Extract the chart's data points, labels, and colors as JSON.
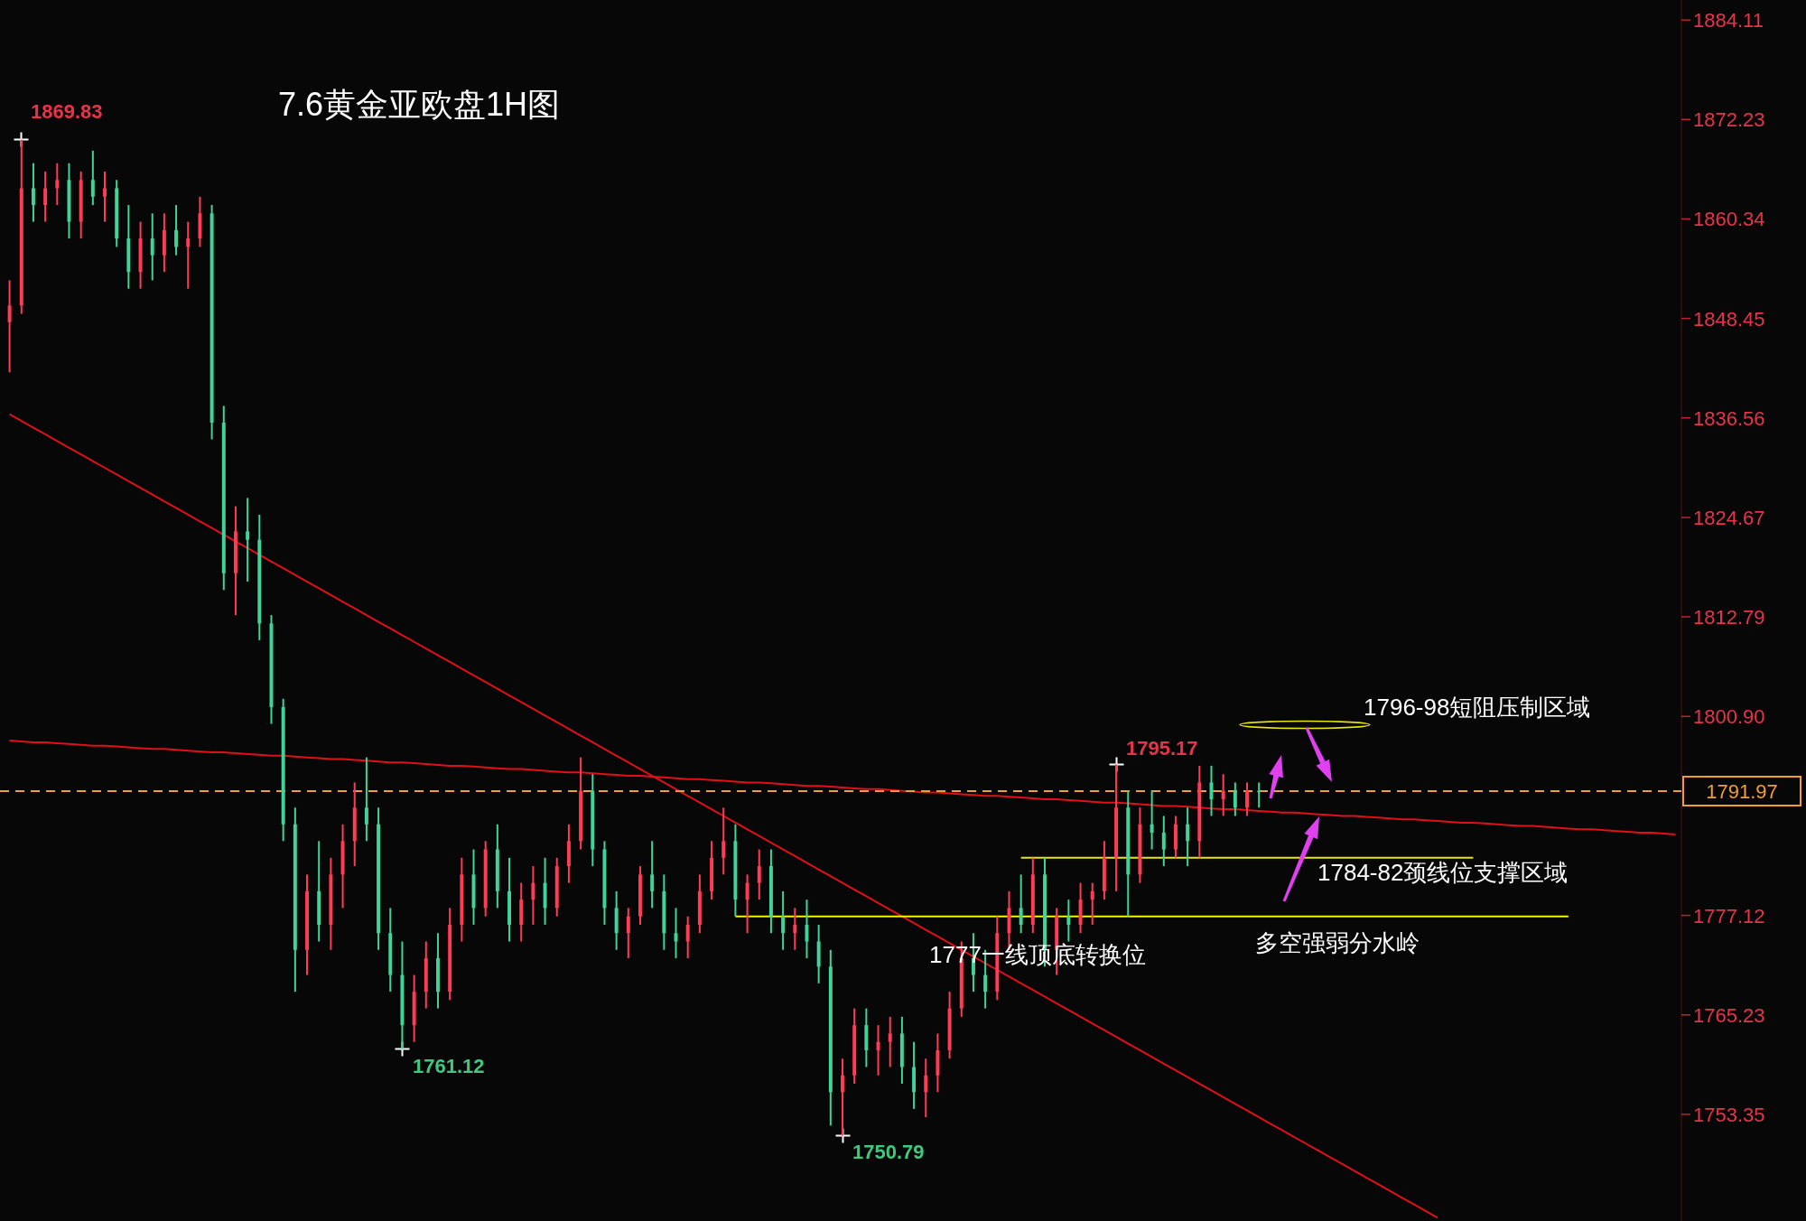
{
  "chart_data": {
    "type": "candlestick",
    "title": "7.6黄金亚欧盘1H图",
    "categories": [
      null,
      null,
      null,
      null,
      null,
      null,
      null,
      null,
      null,
      null,
      null,
      null,
      null,
      null,
      null,
      null,
      null,
      null,
      null,
      null,
      null,
      null,
      null,
      null,
      null,
      null,
      null,
      null,
      null,
      null,
      null,
      null,
      null,
      null,
      null,
      null,
      null,
      null,
      null,
      null,
      null,
      null,
      null,
      null,
      null,
      null,
      null,
      null,
      null,
      null,
      null,
      null,
      null,
      null,
      null,
      null,
      null,
      null,
      null,
      null,
      null,
      null,
      null,
      null,
      null,
      null,
      null,
      null,
      null,
      null,
      null,
      null,
      null,
      null,
      null,
      null,
      null,
      null,
      null,
      null,
      null,
      null,
      null,
      null,
      null,
      null,
      null,
      null,
      null,
      null,
      null,
      null,
      null,
      null,
      null,
      null,
      null,
      null,
      null,
      null,
      null,
      null,
      null,
      null,
      null,
      null,
      null,
      null,
      null,
      null,
      null,
      null,
      null,
      null,
      null,
      null,
      null,
      null,
      null,
      null,
      null,
      null,
      null,
      null,
      null,
      null,
      null,
      null,
      null,
      null,
      null,
      null,
      null,
      null,
      null,
      null,
      null,
      null,
      null,
      null,
      null
    ],
    "ohlc": [
      [
        1848,
        1853,
        1842,
        1850
      ],
      [
        1850,
        1869.83,
        1849,
        1864
      ],
      [
        1864,
        1867,
        1860,
        1862
      ],
      [
        1862,
        1866,
        1860,
        1864
      ],
      [
        1864,
        1867,
        1862,
        1865
      ],
      [
        1865,
        1867,
        1858,
        1860
      ],
      [
        1860,
        1866,
        1858,
        1865
      ],
      [
        1865,
        1868.5,
        1862,
        1863
      ],
      [
        1863,
        1866,
        1860,
        1864
      ],
      [
        1864,
        1865,
        1857,
        1858
      ],
      [
        1858,
        1862,
        1852,
        1854
      ],
      [
        1854,
        1860,
        1852,
        1858
      ],
      [
        1858,
        1861,
        1853,
        1856
      ],
      [
        1856,
        1861,
        1854,
        1859
      ],
      [
        1859,
        1862,
        1856,
        1857
      ],
      [
        1857,
        1860,
        1852,
        1858
      ],
      [
        1858,
        1863,
        1857,
        1861
      ],
      [
        1861,
        1862,
        1834,
        1836
      ],
      [
        1836,
        1838,
        1816,
        1818
      ],
      [
        1818,
        1826,
        1813,
        1823
      ],
      [
        1823,
        1827,
        1817,
        1822
      ],
      [
        1822,
        1825,
        1810,
        1812
      ],
      [
        1812,
        1813,
        1800,
        1802
      ],
      [
        1802,
        1803,
        1786,
        1788
      ],
      [
        1788,
        1790,
        1768,
        1773
      ],
      [
        1773,
        1782,
        1770,
        1780
      ],
      [
        1780,
        1786,
        1774,
        1776
      ],
      [
        1776,
        1784,
        1773,
        1782
      ],
      [
        1782,
        1788,
        1778,
        1786
      ],
      [
        1786,
        1793,
        1783,
        1790
      ],
      [
        1790,
        1796,
        1786,
        1788
      ],
      [
        1788,
        1790,
        1773,
        1775
      ],
      [
        1775,
        1778,
        1768,
        1770
      ],
      [
        1770,
        1774,
        1761.12,
        1764
      ],
      [
        1764,
        1770,
        1762,
        1768
      ],
      [
        1768,
        1774,
        1766,
        1772
      ],
      [
        1772,
        1775,
        1766,
        1768
      ],
      [
        1768,
        1778,
        1767,
        1776
      ],
      [
        1776,
        1784,
        1774,
        1782
      ],
      [
        1782,
        1785,
        1776,
        1778
      ],
      [
        1778,
        1786,
        1777,
        1785
      ],
      [
        1785,
        1788,
        1778,
        1780
      ],
      [
        1780,
        1784,
        1774,
        1776
      ],
      [
        1776,
        1781,
        1774,
        1779
      ],
      [
        1779,
        1783,
        1776,
        1781
      ],
      [
        1781,
        1784,
        1776,
        1778
      ],
      [
        1778,
        1784,
        1777,
        1783
      ],
      [
        1783,
        1788,
        1781,
        1786
      ],
      [
        1786,
        1796,
        1785,
        1792
      ],
      [
        1792,
        1794,
        1783,
        1785
      ],
      [
        1785,
        1786,
        1776,
        1778
      ],
      [
        1778,
        1780,
        1773,
        1775
      ],
      [
        1775,
        1778,
        1772,
        1777
      ],
      [
        1777,
        1783,
        1776,
        1782
      ],
      [
        1782,
        1786,
        1778,
        1780
      ],
      [
        1780,
        1782,
        1773,
        1775
      ],
      [
        1775,
        1778,
        1772,
        1774
      ],
      [
        1774,
        1777,
        1772,
        1776
      ],
      [
        1776,
        1782,
        1775,
        1780
      ],
      [
        1780,
        1786,
        1779,
        1784
      ],
      [
        1784,
        1790,
        1782,
        1786
      ],
      [
        1786,
        1788,
        1777,
        1779
      ],
      [
        1779,
        1782,
        1775,
        1781
      ],
      [
        1781,
        1785,
        1779,
        1783
      ],
      [
        1783,
        1785,
        1775,
        1777
      ],
      [
        1777,
        1780,
        1773,
        1775
      ],
      [
        1775,
        1778,
        1773,
        1776
      ],
      [
        1776,
        1779,
        1772,
        1774
      ],
      [
        1774,
        1776,
        1769,
        1771
      ],
      [
        1771,
        1773,
        1752,
        1756
      ],
      [
        1756,
        1760,
        1750.79,
        1758
      ],
      [
        1758,
        1766,
        1757,
        1764
      ],
      [
        1764,
        1766,
        1759,
        1761
      ],
      [
        1761,
        1764,
        1758,
        1762
      ],
      [
        1762,
        1765,
        1759,
        1763
      ],
      [
        1763,
        1765,
        1757,
        1759
      ],
      [
        1759,
        1762,
        1754,
        1756
      ],
      [
        1756,
        1760,
        1753,
        1758
      ],
      [
        1758,
        1763,
        1756,
        1761
      ],
      [
        1761,
        1768,
        1760,
        1766
      ],
      [
        1766,
        1774,
        1765,
        1772
      ],
      [
        1772,
        1775,
        1768,
        1770
      ],
      [
        1770,
        1773,
        1766,
        1768
      ],
      [
        1768,
        1777,
        1767,
        1775
      ],
      [
        1775,
        1780,
        1773,
        1778
      ],
      [
        1778,
        1782,
        1775,
        1776
      ],
      [
        1776,
        1784,
        1775,
        1782
      ],
      [
        1782,
        1784,
        1771,
        1773
      ],
      [
        1773,
        1778,
        1770,
        1777
      ],
      [
        1777,
        1779,
        1774,
        1776
      ],
      [
        1776,
        1781,
        1775,
        1779
      ],
      [
        1779,
        1781,
        1776,
        1780
      ],
      [
        1780,
        1786,
        1779,
        1784
      ],
      [
        1784,
        1795.17,
        1780,
        1790
      ],
      [
        1790,
        1792,
        1777,
        1782
      ],
      [
        1782,
        1790,
        1781,
        1788
      ],
      [
        1788,
        1792,
        1785,
        1787
      ],
      [
        1787,
        1789,
        1783,
        1785
      ],
      [
        1785,
        1789,
        1784,
        1788
      ],
      [
        1788,
        1790,
        1783,
        1786
      ],
      [
        1786,
        1795,
        1784,
        1793
      ],
      [
        1793,
        1795,
        1789,
        1791
      ],
      [
        1791,
        1794,
        1789,
        1792
      ],
      [
        1792,
        1793,
        1789,
        1790
      ],
      [
        1790,
        1793,
        1789,
        1792
      ],
      [
        1792,
        1793,
        1790,
        1791.97
      ],
      null,
      null,
      null,
      null,
      null,
      null,
      null,
      null,
      null,
      null,
      null,
      null,
      null,
      null,
      null,
      null,
      null,
      null,
      null,
      null,
      null,
      null,
      null,
      null,
      null,
      null,
      null,
      null,
      null,
      null,
      null,
      null,
      null,
      null,
      null
    ],
    "ylim": [
      1740.6,
      1886.5
    ],
    "yticks": [
      1884.11,
      1872.23,
      1860.34,
      1848.45,
      1836.56,
      1824.67,
      1812.79,
      {
        "value": 1800.9,
        "label": "1800.90"
      },
      1777.12,
      1765.23,
      1753.35
    ],
    "tick_labels": "y",
    "series": [
      {
        "type": "line",
        "color": "#e01018",
        "values": [
          1837,
          1836.2,
          1835.4,
          1834.6,
          1833.8,
          1833,
          1832.2,
          1831.4,
          1830.6,
          1829.8,
          1829,
          1828.2,
          1827.4,
          1826.6,
          1825.8,
          1825,
          1824.2,
          1823.4,
          1822.6,
          1821.8,
          1821,
          1820.2,
          1819.4,
          1818.6,
          1817.8,
          1817,
          1816.2,
          1815.4,
          1814.6,
          1813.8,
          1813,
          1812.2,
          1811.4,
          1810.6,
          1809.8,
          1809,
          1808.2,
          1807.4,
          1806.6,
          1805.8,
          1805,
          1804.2,
          1803.4,
          1802.6,
          1801.8,
          1801,
          1800.2,
          1799.4,
          1798.6,
          1797.8,
          1797,
          1796.2,
          1795.4,
          1794.6,
          1793.8,
          1793,
          1792.2,
          1791.4,
          1790.6,
          1789.8,
          1789,
          1788.2,
          1787.4,
          1786.6,
          1785.8,
          1785,
          1784.2,
          1783.4,
          1782.6,
          1781.8,
          1781,
          1780.2,
          1779.4,
          1778.6,
          1777.8,
          1777,
          1776.2,
          1775.4,
          1774.6,
          1773.8,
          1773,
          1772.2,
          1771.4,
          1770.6,
          1769.8,
          1769,
          1768.2,
          1767.4,
          1766.6,
          1765.8,
          1765,
          1764.2,
          1763.4,
          1762.6,
          1761.8,
          1761,
          1760.2,
          1759.4,
          1758.6,
          1757.8,
          1757,
          1756.2,
          1755.4,
          1754.6,
          1753.8,
          1753,
          1752.2,
          1751.4,
          1750.6,
          1749.8,
          1749,
          1748.2,
          1747.4,
          1746.6,
          1745.8,
          1745,
          1744.2,
          1743.4,
          1742.6,
          1741.8,
          1741,
          null,
          null,
          null,
          null,
          null,
          null,
          null,
          null,
          null,
          null,
          null,
          null,
          null,
          null,
          null,
          null,
          null,
          null,
          null,
          null
        ]
      },
      {
        "type": "line",
        "color": "#e01018",
        "values": [
          1798,
          1797.9,
          1797.8,
          1797.8,
          1797.7,
          1797.6,
          1797.5,
          1797.4,
          1797.4,
          1797.3,
          1797.2,
          1797.1,
          1797,
          1797,
          1796.9,
          1796.8,
          1796.7,
          1796.6,
          1796.6,
          1796.5,
          1796.4,
          1796.3,
          1796.2,
          1796.2,
          1796.1,
          1796,
          1795.9,
          1795.8,
          1795.8,
          1795.7,
          1795.6,
          1795.5,
          1795.4,
          1795.4,
          1795.3,
          1795.2,
          1795.1,
          1795,
          1795,
          1794.9,
          1794.8,
          1794.7,
          1794.6,
          1794.6,
          1794.5,
          1794.4,
          1794.3,
          1794.2,
          1794.2,
          1794.1,
          1794,
          1793.9,
          1793.8,
          1793.8,
          1793.7,
          1793.6,
          1793.5,
          1793.4,
          1793.4,
          1793.3,
          1793.2,
          1793.1,
          1793,
          1793,
          1792.9,
          1792.8,
          1792.7,
          1792.6,
          1792.6,
          1792.5,
          1792.4,
          1792.3,
          1792.2,
          1792.2,
          1792.1,
          1792,
          1791.9,
          1791.8,
          1791.8,
          1791.7,
          1791.6,
          1791.5,
          1791.4,
          1791.4,
          1791.3,
          1791.2,
          1791.1,
          1791,
          1791,
          1790.9,
          1790.8,
          1790.7,
          1790.6,
          1790.6,
          1790.5,
          1790.4,
          1790.3,
          1790.2,
          1790.2,
          1790.1,
          1790,
          1789.9,
          1789.8,
          1789.8,
          1789.7,
          1789.6,
          1789.5,
          1789.4,
          1789.4,
          1789.3,
          1789.2,
          1789.1,
          1789,
          1789,
          1788.9,
          1788.8,
          1788.7,
          1788.6,
          1788.6,
          1788.5,
          1788.4,
          1788.3,
          1788.2,
          1788.2,
          1788.1,
          1788,
          1787.9,
          1787.8,
          1787.8,
          1787.7,
          1787.6,
          1787.5,
          1787.4,
          1787.4,
          1787.3,
          1787.2,
          1787.1,
          1787,
          1787,
          1786.9,
          1786.8
        ]
      },
      {
        "type": "line",
        "color": "#f5f500",
        "values": [
          null,
          null,
          null,
          null,
          null,
          null,
          null,
          null,
          null,
          null,
          null,
          null,
          null,
          null,
          null,
          null,
          null,
          null,
          null,
          null,
          null,
          null,
          null,
          null,
          null,
          null,
          null,
          null,
          null,
          null,
          null,
          null,
          null,
          null,
          null,
          null,
          null,
          null,
          null,
          null,
          null,
          null,
          null,
          null,
          null,
          null,
          null,
          null,
          null,
          null,
          null,
          null,
          null,
          null,
          null,
          null,
          null,
          null,
          null,
          null,
          null,
          1777,
          1777,
          1777,
          1777,
          1777,
          1777,
          1777,
          1777,
          1777,
          1777,
          1777,
          1777,
          1777,
          1777,
          1777,
          1777,
          1777,
          1777,
          1777,
          1777,
          1777,
          1777,
          1777,
          1777,
          1777,
          1777,
          1777,
          1777,
          1777,
          1777,
          1777,
          1777,
          1777,
          1777,
          1777,
          1777,
          1777,
          1777,
          1777,
          1777,
          1777,
          1777,
          1777,
          1777,
          1777,
          1777,
          1777,
          1777,
          1777,
          1777,
          1777,
          1777,
          1777,
          1777,
          1777,
          1777,
          1777,
          1777,
          1777,
          1777,
          1777,
          1777,
          1777,
          1777,
          1777,
          1777,
          1777,
          1777,
          1777,
          1777,
          1777,
          null,
          null,
          null,
          null,
          null,
          null,
          null,
          null,
          null
        ]
      },
      {
        "type": "line",
        "color": "#e8e800",
        "values": [
          null,
          null,
          null,
          null,
          null,
          null,
          null,
          null,
          null,
          null,
          null,
          null,
          null,
          null,
          null,
          null,
          null,
          null,
          null,
          null,
          null,
          null,
          null,
          null,
          null,
          null,
          null,
          null,
          null,
          null,
          null,
          null,
          null,
          null,
          null,
          null,
          null,
          null,
          null,
          null,
          null,
          null,
          null,
          null,
          null,
          null,
          null,
          null,
          null,
          null,
          null,
          null,
          null,
          null,
          null,
          null,
          null,
          null,
          null,
          null,
          null,
          null,
          null,
          null,
          null,
          null,
          null,
          null,
          null,
          null,
          null,
          null,
          null,
          null,
          null,
          null,
          null,
          null,
          null,
          null,
          null,
          null,
          null,
          null,
          null,
          1784,
          1784,
          1784,
          1784,
          1784,
          1784,
          1784,
          1784,
          1784,
          1784,
          1784,
          1784,
          1784,
          1784,
          1784,
          1784,
          1784,
          1784,
          1784,
          1784,
          1784,
          1784,
          1784,
          1784,
          1784,
          1784,
          1784,
          1784,
          1784,
          1784,
          1784,
          1784,
          1784,
          1784,
          1784,
          1784,
          1784,
          1784,
          1784,
          null,
          null,
          null,
          null,
          null,
          null,
          null,
          null,
          null,
          null,
          null,
          null,
          null,
          null,
          null,
          null,
          null
        ]
      }
    ],
    "ref_lines": [
      {
        "axis": "y",
        "value": 1791.97,
        "label": "1791.97",
        "color": "#f0a030",
        "line_style": "dashed"
      }
    ],
    "annotations": [
      "1869.83",
      "1761.12",
      "1750.79",
      "1795.17",
      "1796-98短阻压制区域",
      "1784-82颈线位支撑区域",
      "1777一线顶底转换位",
      "多空强弱分水岭"
    ]
  }
}
